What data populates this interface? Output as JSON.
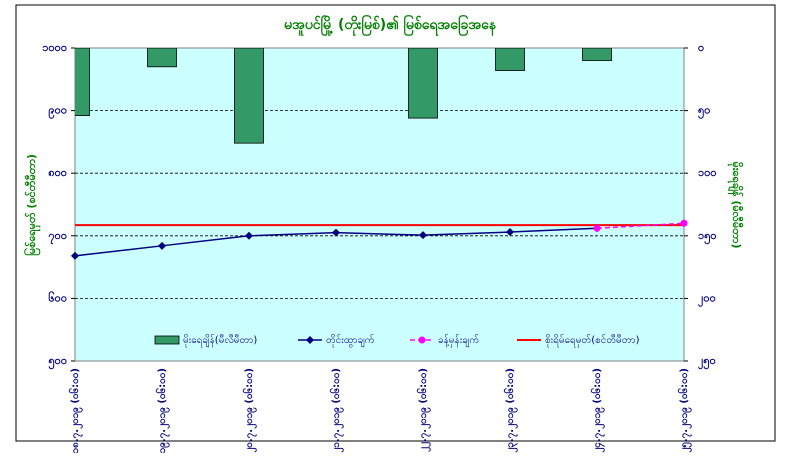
{
  "chart_data": {
    "type": "combo",
    "title": "မအူပင်မြို့ (တိုးမြစ်)၏ မြစ်ရေအခြေအနေ",
    "y_label": "မြစ်ရေမှတ် (စင်တီမီတာ)",
    "y2_label": "မိုးရေချိန် (မီလီမီတာ)",
    "categories": [
      "၁၈.၇.၂၀၁၉ (၀၆:၀၀)",
      "၁၉.၇.၂၀၁၉ (၀၆:၀၀)",
      "၂၀.၇.၂၀၁၉ (၀၆:၀၀)",
      "၂၁.၇.၂၀၁၉ (၀၆:၀၀)",
      "၂၂.၇.၂၀၁၉ (၀၆:၀၀)",
      "၂၃.၇.၂၀၁၉ (၀၆:၀၀)",
      "၂၄.၇.၂၀၁၉ (၀၆:၀၀)",
      "၂၅.၇.၂၀၁၉ (၀၆:၀၀)"
    ],
    "series": [
      {
        "name": "မိုးရေချိန်(မီလီမီတာ)",
        "type": "bar",
        "axis": "y2",
        "color": "#339966",
        "values": [
          54,
          15,
          76,
          0,
          56,
          18,
          10,
          0
        ]
      },
      {
        "name": "တိုင်းထွာချက်",
        "type": "line",
        "color": "#000080",
        "values": [
          668,
          684,
          700,
          705,
          701,
          706,
          712,
          null
        ]
      },
      {
        "name": "ခန့်မှန်းချက်",
        "type": "line",
        "dashed": true,
        "color": "#ff00ff",
        "values": [
          null,
          null,
          null,
          null,
          null,
          null,
          712,
          720
        ]
      }
    ],
    "threshold": {
      "name": "စိုးရိမ်ရေမှတ်(စင်တီမီတာ)",
      "value": 717,
      "color": "#ff0000"
    },
    "ylim": [
      500,
      1000
    ],
    "yticks": [
      {
        "value": 500,
        "label": "၅၀၀"
      },
      {
        "value": 600,
        "label": "၆၀၀"
      },
      {
        "value": 700,
        "label": "၇၀၀"
      },
      {
        "value": 800,
        "label": "၈၀၀"
      },
      {
        "value": 900,
        "label": "၉၀၀"
      },
      {
        "value": 1000,
        "label": "၁၀၀၀"
      }
    ],
    "y2lim": [
      250,
      0
    ],
    "y2ticks": [
      {
        "value": 250,
        "label": "၂၅၀"
      },
      {
        "value": 200,
        "label": "၂၀၀"
      },
      {
        "value": 150,
        "label": "၁၅၀"
      },
      {
        "value": 100,
        "label": "၁၀၀"
      },
      {
        "value": 50,
        "label": "၅၀"
      },
      {
        "value": 0,
        "label": "၀"
      }
    ],
    "grid": true
  }
}
